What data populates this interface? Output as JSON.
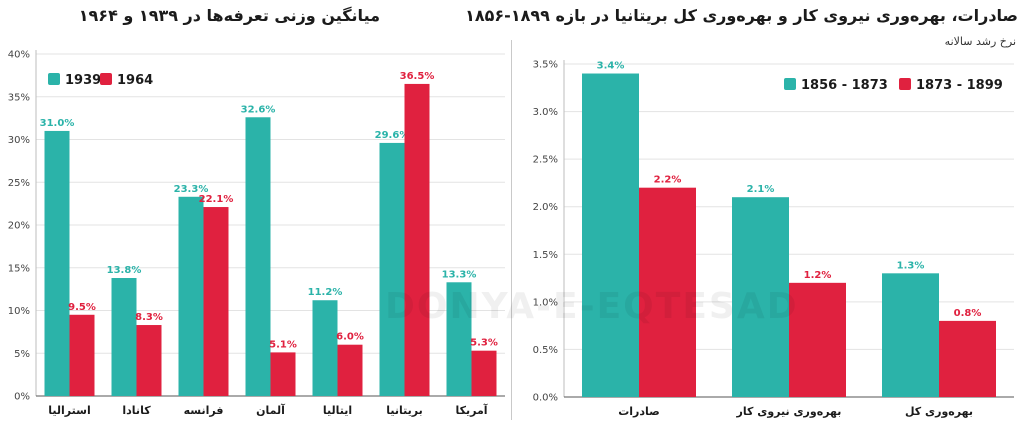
{
  "colors": {
    "teal": "#2bb3a9",
    "red": "#e0213f"
  },
  "watermark": "DONYA-E-EQTESAD",
  "chart_data": [
    {
      "type": "bar",
      "title": "میانگین وزنی تعرفه‌ها در ۱۹۳۹ و ۱۹۶۴",
      "categories": [
        "استرالیا",
        "کانادا",
        "فرانسه",
        "آلمان",
        "ایتالیا",
        "بریتانیا",
        "آمریکا"
      ],
      "series": [
        {
          "name": "1939",
          "values": [
            31.0,
            13.8,
            23.3,
            32.6,
            11.2,
            29.6,
            13.3
          ],
          "labels": [
            "31.0%",
            "13.8%",
            "23.3%",
            "32.6%",
            "11.2%",
            "29.6%",
            "13.3%"
          ]
        },
        {
          "name": "1964",
          "values": [
            9.5,
            8.3,
            22.1,
            5.1,
            6.0,
            36.5,
            5.3
          ],
          "labels": [
            "9.5%",
            "8.3%",
            "22.1%",
            "5.1%",
            "6.0%",
            "36.5%",
            "5.3%"
          ]
        }
      ],
      "ylim": [
        0,
        40
      ],
      "yticks": [
        "0%",
        "5%",
        "10%",
        "15%",
        "20%",
        "25%",
        "30%",
        "35%",
        "40%"
      ],
      "grid": true,
      "legend": "top-left"
    },
    {
      "type": "bar",
      "title": "صادرات، بهره‌وری نیروی کار و بهره‌وری کل بریتانیا در بازه ۱۸۹۹-۱۸۵۶",
      "subtitle": "نرخ رشد سالانه",
      "categories": [
        "صادرات",
        "بهره‌وری نیروی کار",
        "بهره‌وری کل"
      ],
      "series": [
        {
          "name": "1856 - 1873",
          "values": [
            3.4,
            2.1,
            1.3
          ],
          "labels": [
            "3.4%",
            "2.1%",
            "1.3%"
          ]
        },
        {
          "name": "1873 - 1899",
          "values": [
            2.2,
            1.2,
            0.8
          ],
          "labels": [
            "2.2%",
            "1.2%",
            "0.8%"
          ]
        }
      ],
      "ylim": [
        0,
        3.5
      ],
      "yticks": [
        "0.0%",
        "0.5%",
        "1.0%",
        "1.5%",
        "2.0%",
        "2.5%",
        "3.0%",
        "3.5%"
      ],
      "grid": true,
      "legend": "top-right"
    }
  ]
}
